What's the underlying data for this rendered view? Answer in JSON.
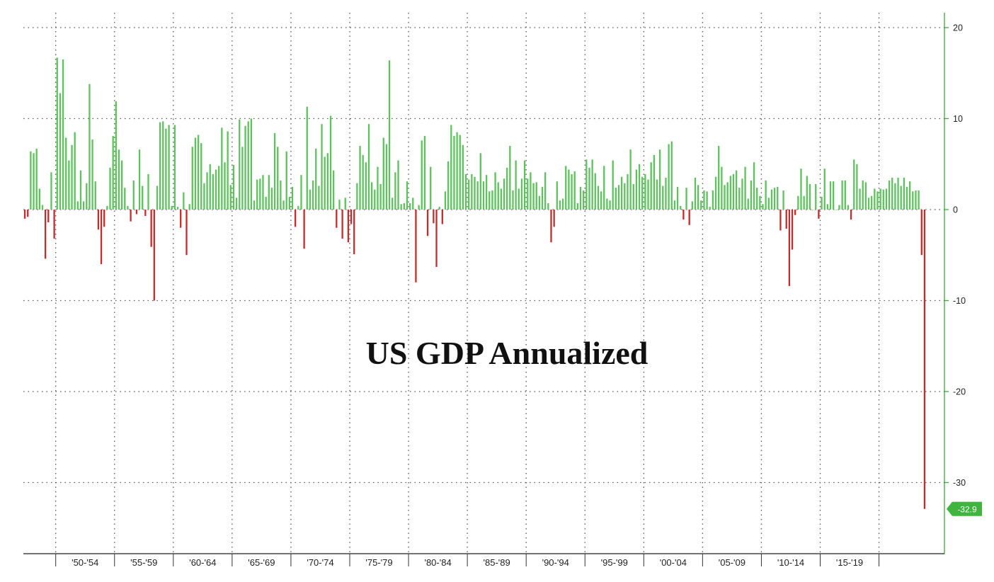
{
  "chart_data": {
    "type": "bar",
    "title": "US GDP Annualized",
    "xlabel": "",
    "ylabel": "",
    "ylim": [
      -37,
      22
    ],
    "yticks": [
      20,
      10,
      0,
      -10,
      -20,
      -30
    ],
    "ytick_labels": [
      "20",
      "10",
      "0",
      "-10",
      "-20",
      "-30"
    ],
    "x_period_labels": [
      "'50-'54",
      "'55-'59",
      "'60-'64",
      "'65-'69",
      "'70-'74",
      "'75-'79",
      "'80-'84",
      "'85-'89",
      "'90-'94",
      "'95-'99",
      "'00-'04",
      "'05-'09",
      "'10-'14",
      "'15-'19"
    ],
    "grid": true,
    "positive_color": "#5cc25c",
    "negative_color": "#c42b2b",
    "last_value_label": "-32.9",
    "last_value_color": "#3fb43f",
    "start_period": "1947 Q2",
    "frequency": "quarterly",
    "values": [
      -1.0,
      -0.8,
      6.4,
      6.2,
      6.7,
      2.3,
      0.5,
      -5.4,
      -1.4,
      4.1,
      -3.2,
      16.7,
      12.8,
      16.5,
      7.9,
      5.4,
      7.1,
      8.5,
      0.9,
      4.3,
      0.9,
      2.9,
      13.8,
      7.7,
      3.1,
      -2.2,
      -6.0,
      -1.9,
      0.4,
      4.6,
      8.1,
      11.9,
      6.6,
      5.4,
      2.4,
      0.4,
      -1.3,
      3.2,
      -0.5,
      6.6,
      2.6,
      -0.7,
      3.9,
      -4.1,
      -10.0,
      2.6,
      9.6,
      9.7,
      8.9,
      9.3,
      0.4,
      9.3,
      0.3,
      -2.0,
      1.9,
      -5.0,
      0.6,
      6.9,
      7.9,
      8.2,
      7.3,
      2.9,
      4.1,
      5.0,
      3.9,
      4.4,
      4.8,
      9.0,
      5.2,
      8.6,
      2.7,
      4.9,
      1.3,
      9.9,
      6.9,
      9.2,
      9.7,
      10.0,
      1.0,
      3.3,
      3.4,
      3.8,
      1.4,
      3.8,
      2.4,
      8.4,
      6.9,
      3.2,
      1.0,
      6.4,
      1.4,
      2.5,
      -1.9,
      0.4,
      3.8,
      -4.3,
      11.3,
      2.2,
      3.2,
      6.7,
      2.6,
      9.4,
      5.8,
      6.2,
      10.3,
      4.3,
      -2.0,
      1.1,
      -3.2,
      1.3,
      -3.6,
      -1.6,
      -4.9,
      2.9,
      7.0,
      6.0,
      5.2,
      9.4,
      3.0,
      2.2,
      4.7,
      2.8,
      7.9,
      7.2,
      16.4,
      1.3,
      4.1,
      5.4,
      0.6,
      0.7,
      3.1,
      0.7,
      1.3,
      -8.0,
      0.5,
      7.6,
      8.1,
      -2.9,
      4.7,
      -1.5,
      -6.3,
      0.3,
      -1.6,
      2.0,
      5.3,
      9.3,
      8.1,
      8.5,
      8.2,
      7.1,
      3.9,
      3.3,
      3.9,
      3.6,
      3.1,
      6.2,
      3.1,
      3.8,
      2.0,
      2.1,
      4.1,
      3.0,
      2.3,
      3.4,
      4.6,
      7.0,
      2.1,
      5.4,
      2.3,
      3.4,
      5.4,
      3.4,
      4.1,
      2.9,
      3.0,
      1.5,
      2.5,
      4.1,
      0.7,
      -3.6,
      -1.9,
      3.1,
      1.0,
      1.2,
      4.8,
      4.4,
      3.9,
      4.2,
      0.7,
      2.5,
      2.1,
      5.5,
      4.6,
      5.5,
      4.0,
      2.6,
      2.0,
      4.8,
      1.2,
      1.0,
      5.4,
      2.4,
      2.7,
      3.6,
      2.9,
      3.9,
      6.6,
      2.8,
      4.4,
      5.0,
      3.6,
      3.9,
      3.3,
      5.2,
      6.0,
      3.3,
      6.6,
      2.6,
      3.5,
      7.2,
      7.5,
      1.0,
      2.5,
      0.4,
      -1.1,
      2.4,
      -1.7,
      0.9,
      3.5,
      2.7,
      1.0,
      2.1,
      2.0,
      0.3,
      2.1,
      3.6,
      7.0,
      4.7,
      2.7,
      3.0,
      3.7,
      3.9,
      4.3,
      2.4,
      3.4,
      4.7,
      1.2,
      3.2,
      5.2,
      2.4,
      1.5,
      0.6,
      3.2,
      1.3,
      2.2,
      2.4,
      2.5,
      -2.3,
      2.1,
      -2.1,
      -8.4,
      -4.4,
      -0.6,
      1.5,
      4.5,
      1.5,
      3.7,
      2.8,
      0.0,
      2.8,
      -1.0,
      1.4,
      4.5,
      0.6,
      3.1,
      3.1,
      0.0,
      0.5,
      3.2,
      3.2,
      0.5,
      -1.1,
      5.5,
      5.0,
      2.3,
      3.2,
      3.0,
      1.3,
      1.5,
      2.3,
      2.0,
      2.3,
      2.2,
      2.3,
      3.2,
      3.5,
      2.9,
      3.5,
      2.6,
      3.5,
      2.5,
      3.1,
      2.0,
      2.1,
      2.1,
      -5.0,
      -32.9
    ]
  }
}
